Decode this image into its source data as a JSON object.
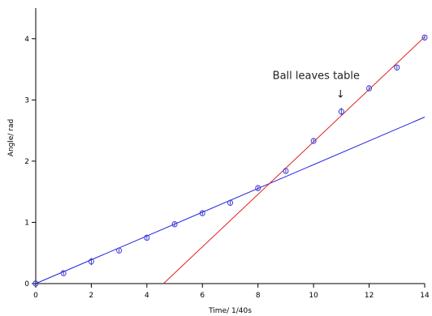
{
  "chart_data": {
    "type": "scatter",
    "title": "",
    "xlabel": "Time/  1/40s",
    "ylabel": "Angle/  rad",
    "xlim": [
      0,
      14
    ],
    "ylim": [
      0,
      4.5
    ],
    "xticks": [
      0,
      2,
      4,
      6,
      8,
      10,
      12,
      14
    ],
    "yticks": [
      0,
      1,
      2,
      3,
      4
    ],
    "grid": false,
    "points": {
      "color": "#3b3bd6",
      "marker": "circle-open",
      "x": [
        0,
        1,
        2,
        3,
        4,
        5,
        6,
        7,
        8,
        9,
        10,
        11,
        12,
        13,
        14
      ],
      "y": [
        0,
        0.17,
        0.36,
        0.54,
        0.75,
        0.97,
        1.15,
        1.32,
        1.56,
        1.84,
        2.33,
        2.81,
        3.19,
        3.53,
        4.02
      ],
      "error": [
        0,
        0.03,
        0.06,
        0.03,
        0.03,
        0.03,
        0.03,
        0.03,
        0.03,
        0.03,
        0.03,
        0.06,
        0.03,
        0.03,
        0.03
      ]
    },
    "fit_lines": [
      {
        "color": "#2020e0",
        "x": [
          0,
          14
        ],
        "y": [
          0,
          2.72
        ]
      },
      {
        "color": "#e02020",
        "x": [
          4.6,
          14
        ],
        "y": [
          0,
          4.03
        ]
      }
    ],
    "annotations": [
      {
        "text": "Ball leaves table",
        "arrow": "↓",
        "x": 11,
        "y": 2.81
      }
    ]
  }
}
